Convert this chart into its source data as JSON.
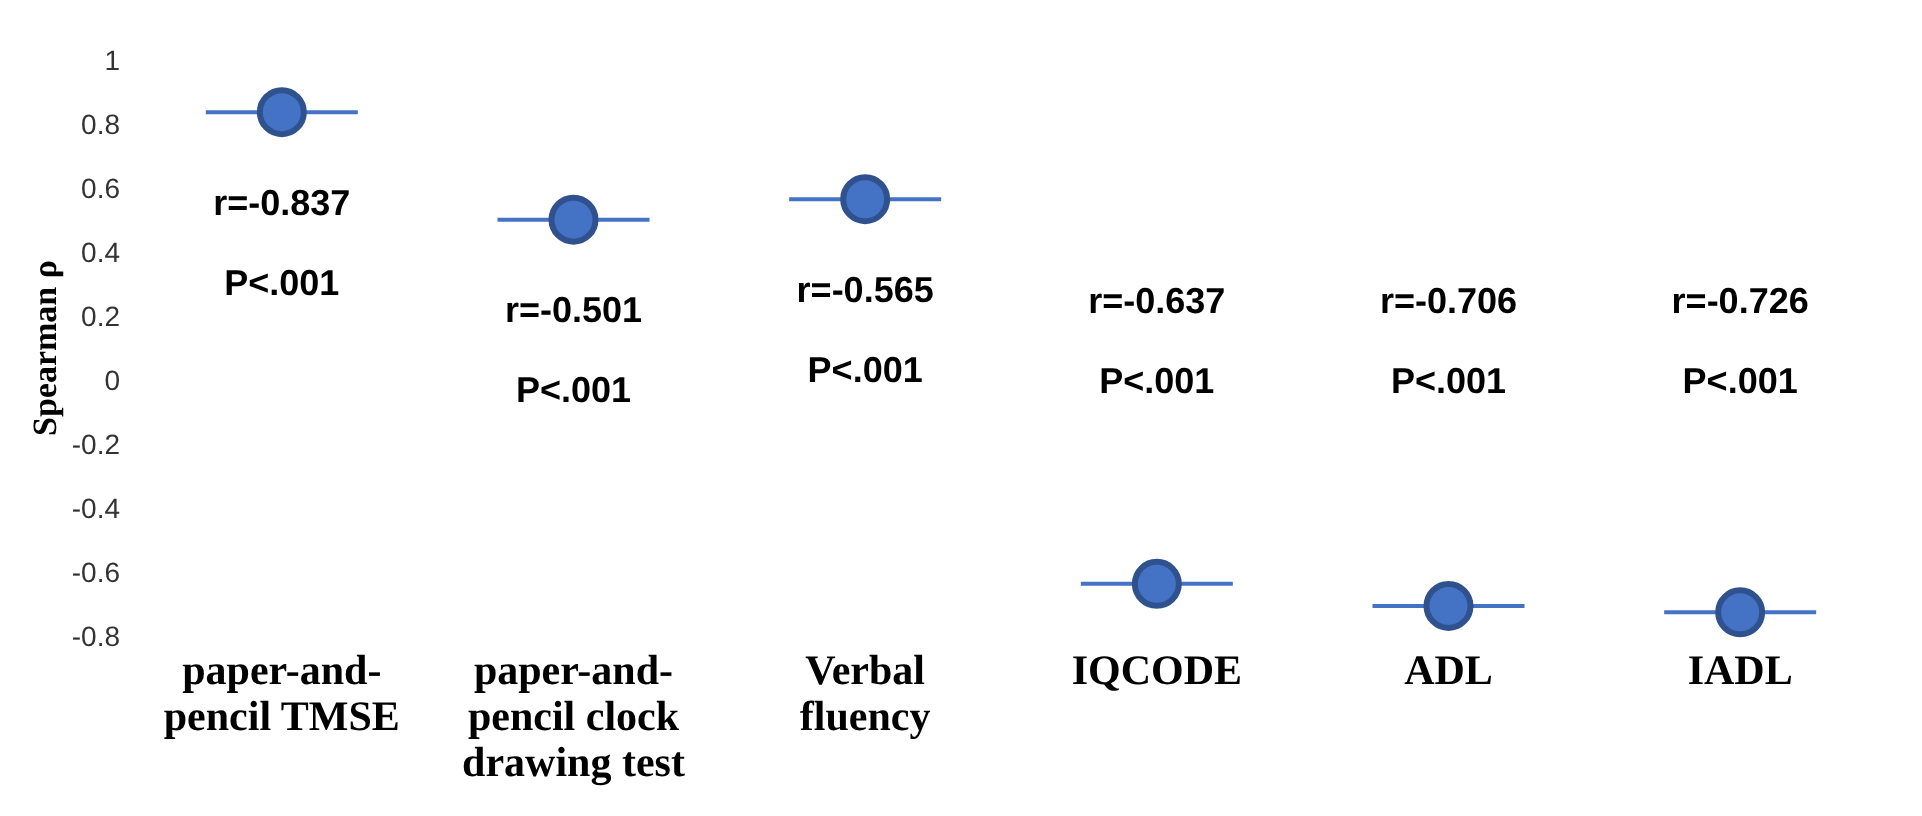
{
  "chart_data": {
    "type": "scatter",
    "ylabel": "Spearman ρ",
    "categories": [
      "paper-and-pencil TMSE",
      "paper-and-pencil clock drawing test",
      "Verbal fluency",
      "IQCODE",
      "ADL",
      "IADL"
    ],
    "values": [
      0.837,
      0.501,
      0.565,
      -0.637,
      -0.706,
      -0.726
    ],
    "color": "#4472c4",
    "marker": "circle",
    "grid": false,
    "ylim": [
      -0.8,
      1
    ],
    "yticks": [
      -0.8,
      -0.6,
      -0.4,
      -0.2,
      0,
      0.2,
      0.4,
      0.6,
      0.8,
      1
    ],
    "annotations": [
      "r=-0.837",
      "P<.001",
      "r=-0.501",
      "P<.001",
      "r=-0.565",
      "P<.001",
      "r=-0.637",
      "P<.001",
      "r=-0.706",
      "P<.001",
      "r=-0.726",
      "P<.001"
    ]
  }
}
